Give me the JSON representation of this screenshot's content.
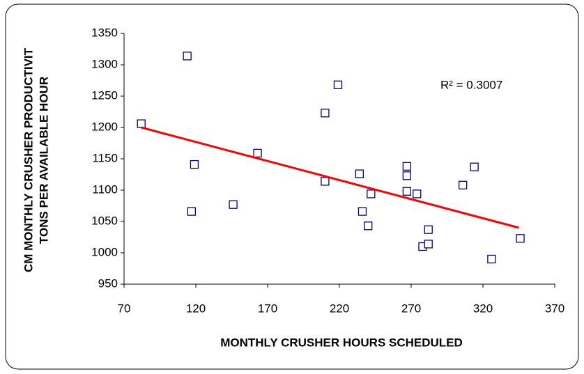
{
  "chart_data": {
    "type": "scatter",
    "x_label": "MONTHLY CRUSHER HOURS SCHEDULED",
    "y_label": [
      "CM MONTHLY CRUSHER PRODUCTIVIT",
      "TONS PER AVAILABLE HOUR"
    ],
    "annotation": "R² = 0.3007",
    "series": [
      {
        "color": "#000080",
        "x": [
          82,
          114,
          119,
          117,
          146,
          163,
          210,
          219,
          210,
          234,
          236,
          240,
          242,
          267,
          267,
          267,
          274,
          282,
          278,
          282,
          306,
          314,
          326,
          346
        ],
        "values": [
          1206,
          1314,
          1141,
          1066,
          1077,
          1159,
          1223,
          1268,
          1114,
          1126,
          1066,
          1043,
          1094,
          1138,
          1123,
          1098,
          1094,
          1037,
          1010,
          1014,
          1108,
          1137,
          990,
          1023
        ]
      }
    ],
    "trendline": {
      "color": "#ff0000",
      "x": [
        82,
        345
      ],
      "values": [
        1200,
        1040
      ]
    },
    "xlim": [
      70,
      370
    ],
    "xticks": [
      70,
      120,
      170,
      220,
      270,
      320,
      370
    ],
    "ylim": [
      950,
      1350
    ],
    "yticks": [
      950,
      1000,
      1050,
      1100,
      1150,
      1200,
      1250,
      1300,
      1350
    ]
  }
}
